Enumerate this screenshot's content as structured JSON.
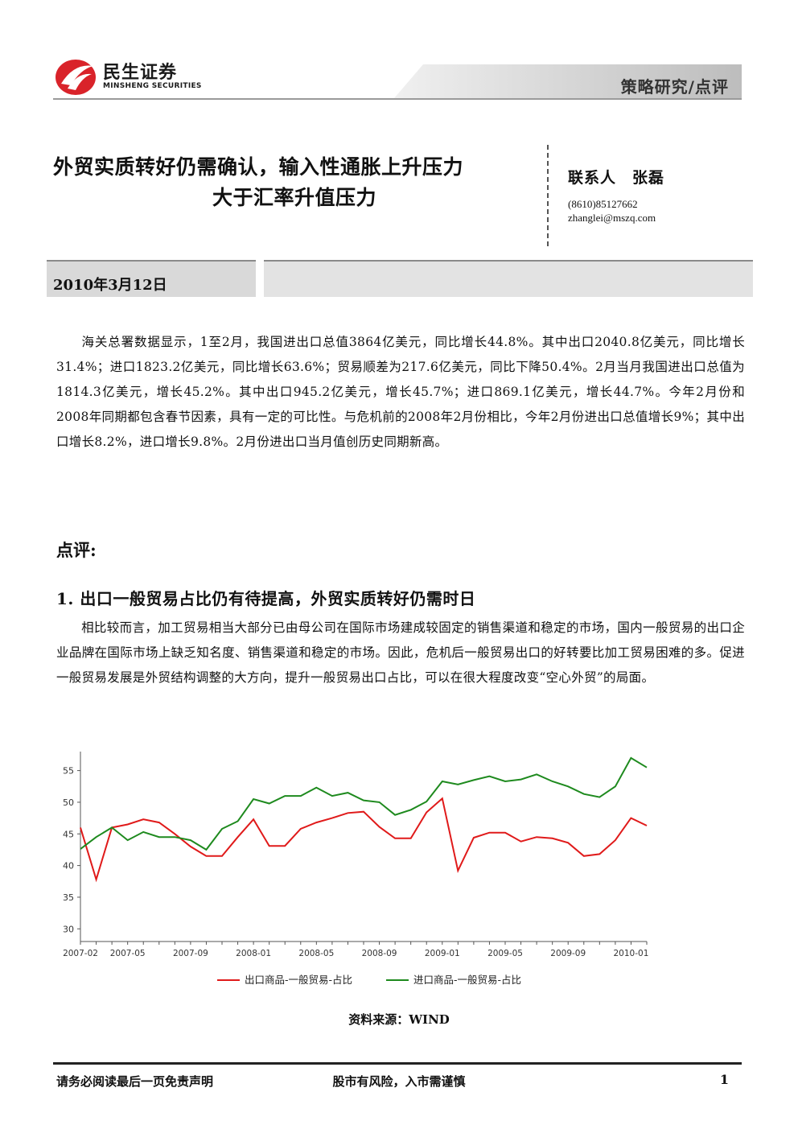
{
  "header": {
    "logo_cn": "民生证券",
    "logo_en": "MINSHENG SECURITIES",
    "tag": "策略研究/点评"
  },
  "title": {
    "line1": "外贸实质转好仍需确认，输入性通胀上升压力",
    "line2": "大于汇率升值压力"
  },
  "contact": {
    "name": "联系人　张磊",
    "phone": "(8610)85127662",
    "email": "zhanglei@mszq.com"
  },
  "date": "2010年3月12日",
  "paragraphs": {
    "p1": "海关总署数据显示，1至2月，我国进出口总值3864亿美元，同比增长44.8%。其中出口2040.8亿美元，同比增长31.4%；进口1823.2亿美元，同比增长63.6%；贸易顺差为217.6亿美元，同比下降50.4%。2月当月我国进出口总值为1814.3亿美元，增长45.2%。其中出口945.2亿美元，增长45.7%；进口869.1亿美元，增长44.7%。今年2月份和2008年同期都包含春节因素，具有一定的可比性。与危机前的2008年2月份相比，今年2月份进出口总值增长9%；其中出口增长8.2%，进口增长9.8%。2月份进出口当月值创历史同期新高。",
    "review": "点评:",
    "sec1": "1.  出口一般贸易占比仍有待提高，外贸实质转好仍需时日",
    "p2": "相比较而言，加工贸易相当大部分已由母公司在国际市场建成较固定的销售渠道和稳定的市场，国内一般贸易的出口企业品牌在国际市场上缺乏知名度、销售渠道和稳定的市场。因此，危机后一般贸易出口的好转要比加工贸易困难的多。促进一般贸易发展是外贸结构调整的大方向，提升一般贸易出口占比，可以在很大程度改变“空心外贸”的局面。"
  },
  "chart_data": {
    "type": "line",
    "x_tick_labels": [
      "2007-02",
      "2007-05",
      "2007-09",
      "2008-01",
      "2008-05",
      "2008-09",
      "2009-01",
      "2009-05",
      "2009-09",
      "2010-01"
    ],
    "x_tick_index": [
      0,
      3,
      7,
      11,
      15,
      19,
      23,
      27,
      31,
      35
    ],
    "ylim": [
      28,
      58
    ],
    "y_ticks": [
      30,
      35,
      40,
      45,
      50,
      55
    ],
    "grid": false,
    "legend_position": "bottom",
    "series": [
      {
        "name": "出口商品-一般贸易-占比",
        "color": "#e01a1a",
        "values": [
          46.0,
          37.8,
          46.0,
          46.5,
          47.3,
          46.8,
          45.0,
          43.0,
          41.5,
          41.5,
          44.5,
          47.3,
          43.1,
          43.1,
          45.8,
          46.8,
          47.5,
          48.3,
          48.5,
          46.1,
          44.3,
          44.3,
          48.4,
          50.6,
          39.2,
          44.4,
          45.2,
          45.2,
          43.8,
          44.5,
          44.3,
          43.6,
          41.5,
          41.8,
          44.0,
          47.5,
          46.3
        ]
      },
      {
        "name": "进口商品-一般贸易-占比",
        "color": "#1e8a1e",
        "values": [
          42.6,
          44.5,
          46.0,
          44.0,
          45.3,
          44.5,
          44.5,
          44.0,
          42.5,
          45.8,
          47.0,
          50.5,
          49.8,
          51.0,
          51.0,
          52.3,
          51.0,
          51.5,
          50.3,
          50.0,
          48.0,
          48.8,
          50.1,
          53.3,
          52.8,
          53.5,
          54.1,
          53.3,
          53.6,
          54.4,
          53.3,
          52.5,
          51.3,
          50.8,
          52.5,
          57.0,
          55.5
        ]
      }
    ],
    "source": "资料来源：WIND"
  },
  "footer": {
    "left": "请务必阅读最后一页免责声明",
    "center": "股市有风险，入市需谨慎",
    "page": "1"
  }
}
